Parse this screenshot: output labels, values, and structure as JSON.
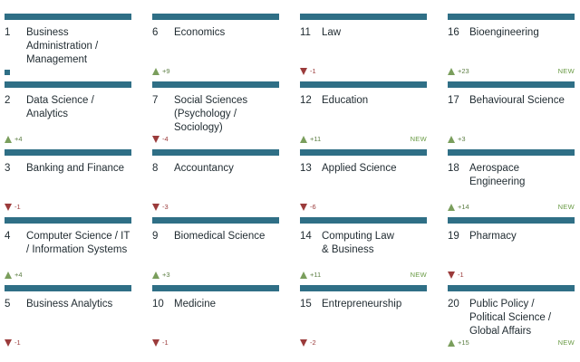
{
  "colors": {
    "bar": "#2f6f86",
    "up": "#7a9e5c",
    "down": "#9b3b3b",
    "same": "#2f6f86",
    "new": "#6a9b45"
  },
  "columns": [
    [
      {
        "rank": "1",
        "name": "Business Administration / Management",
        "trend": "same",
        "change": "",
        "new": ""
      },
      {
        "rank": "2",
        "name": "Data Science / Analytics",
        "trend": "up",
        "change": "+4",
        "new": ""
      },
      {
        "rank": "3",
        "name": "Banking and Finance",
        "trend": "down",
        "change": "-1",
        "new": ""
      },
      {
        "rank": "4",
        "name": "Computer Science / IT / Information Systems",
        "trend": "up",
        "change": "+4",
        "new": ""
      },
      {
        "rank": "5",
        "name": "Business Analytics",
        "trend": "down",
        "change": "-1",
        "new": ""
      }
    ],
    [
      {
        "rank": "6",
        "name": "Economics",
        "trend": "up",
        "change": "+9",
        "new": ""
      },
      {
        "rank": "7",
        "name": "Social Sciences (Psychology / Sociology)",
        "trend": "down",
        "change": "-4",
        "new": ""
      },
      {
        "rank": "8",
        "name": "Accountancy",
        "trend": "down",
        "change": "-3",
        "new": ""
      },
      {
        "rank": "9",
        "name": "Biomedical Science",
        "trend": "up",
        "change": "+3",
        "new": ""
      },
      {
        "rank": "10",
        "name": "Medicine",
        "trend": "down",
        "change": "-1",
        "new": ""
      }
    ],
    [
      {
        "rank": "11",
        "name": "Law",
        "trend": "down",
        "change": "-1",
        "new": ""
      },
      {
        "rank": "12",
        "name": "Education",
        "trend": "up",
        "change": "+11",
        "new": "NEW"
      },
      {
        "rank": "13",
        "name": "Applied Science",
        "trend": "down",
        "change": "-6",
        "new": ""
      },
      {
        "rank": "14",
        "name": "Computing Law & Business",
        "trend": "up",
        "change": "+11",
        "new": "NEW"
      },
      {
        "rank": "15",
        "name": "Entrepreneurship",
        "trend": "down",
        "change": "-2",
        "new": ""
      }
    ],
    [
      {
        "rank": "16",
        "name": "Bioengineering",
        "trend": "up",
        "change": "+23",
        "new": "NEW"
      },
      {
        "rank": "17",
        "name": "Behavioural Science",
        "trend": "up",
        "change": "+3",
        "new": ""
      },
      {
        "rank": "18",
        "name": "Aerospace Engineering",
        "trend": "up",
        "change": "+14",
        "new": "NEW"
      },
      {
        "rank": "19",
        "name": "Pharmacy",
        "trend": "down",
        "change": "-1",
        "new": ""
      },
      {
        "rank": "20",
        "name": "Public Policy / Political Science / Global Affairs",
        "trend": "up",
        "change": "+15",
        "new": "NEW"
      }
    ]
  ]
}
